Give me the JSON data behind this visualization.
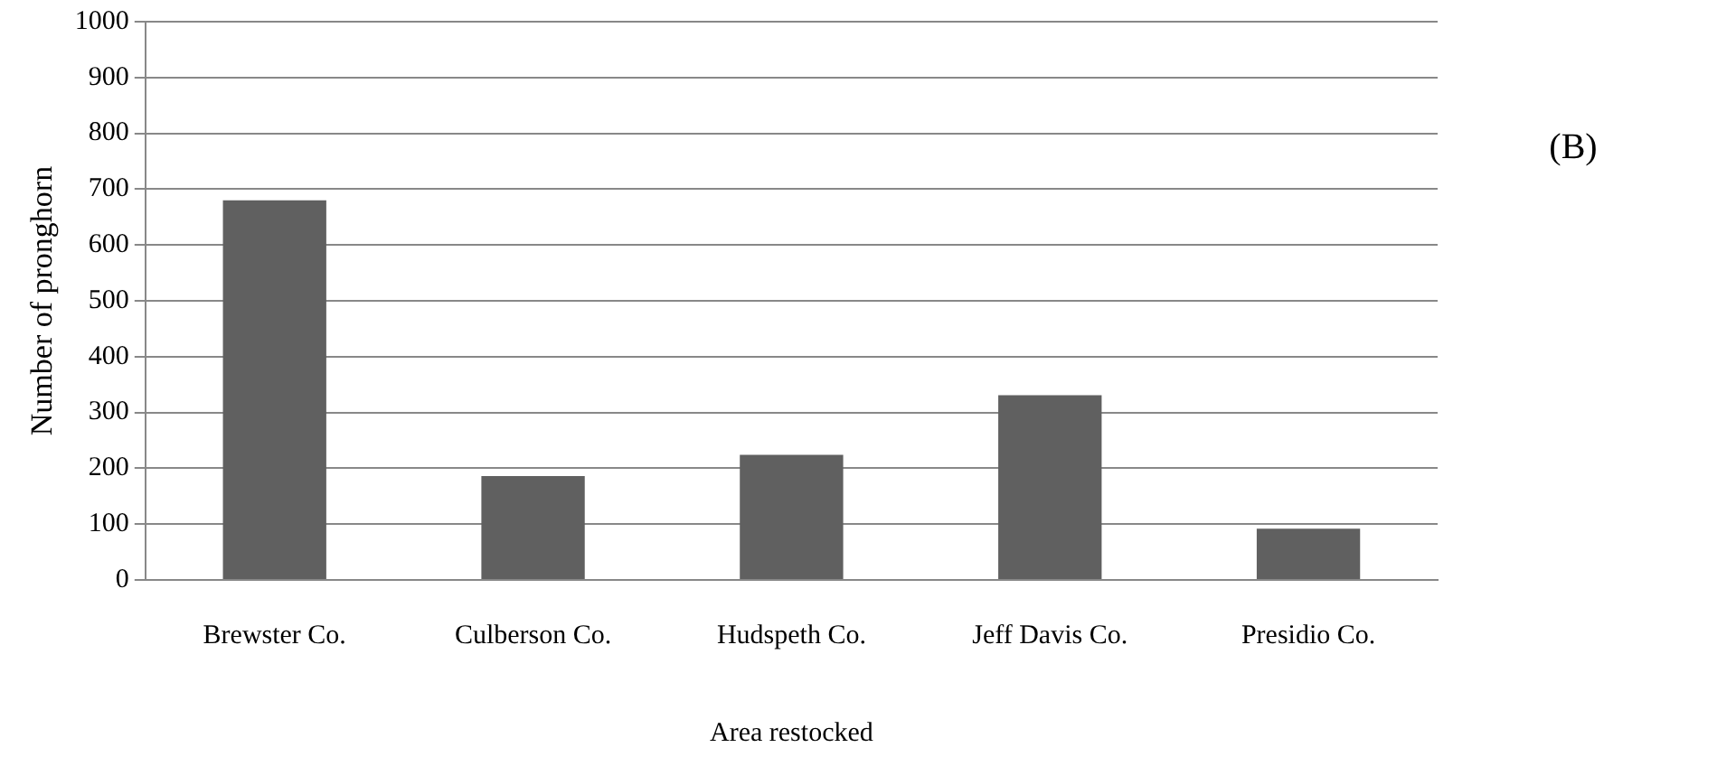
{
  "chart_data": {
    "type": "bar",
    "xlabel": "Area restocked",
    "ylabel": "Number of pronghorn",
    "categories": [
      "Brewster Co.",
      "Culberson Co.",
      "Hudspeth Co.",
      "Jeff Davis Co.",
      "Presidio Co."
    ],
    "values": [
      680,
      186,
      224,
      331,
      92
    ],
    "color": "#606060",
    "ylim": [
      0,
      1000
    ],
    "yticks": [
      0,
      100,
      200,
      300,
      400,
      500,
      600,
      700,
      800,
      900,
      1000
    ],
    "grid": "y",
    "annotations": [
      "(B)"
    ]
  }
}
